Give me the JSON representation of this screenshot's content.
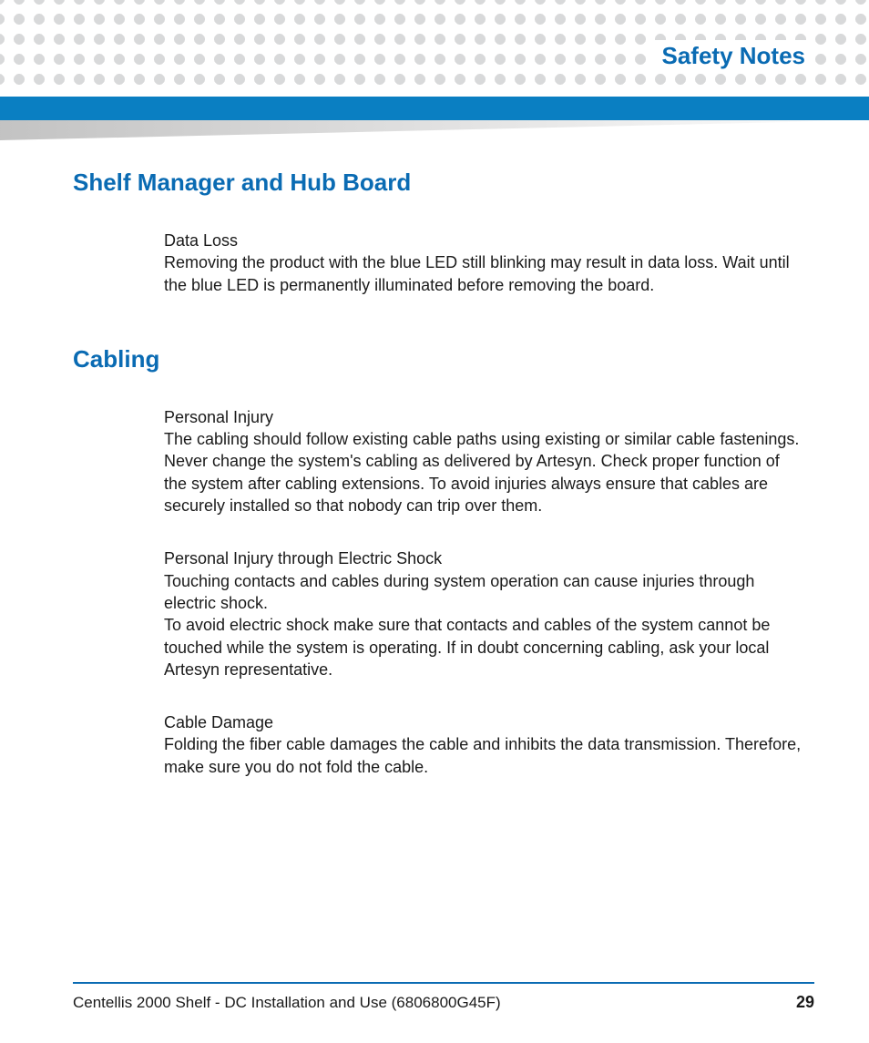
{
  "header": {
    "title": "Safety Notes",
    "title_color": "#0a6bb3",
    "bar_color": "#0a7fc2",
    "dot_color": "#d8d9da"
  },
  "sections": [
    {
      "heading": "Shelf Manager and Hub Board",
      "notes": [
        {
          "title": "Data Loss",
          "body": "Removing the product with the blue LED still blinking may result in data loss. Wait until the blue LED is permanently illuminated before removing the board."
        }
      ]
    },
    {
      "heading": "Cabling",
      "notes": [
        {
          "title": "Personal Injury",
          "body": "The cabling should follow existing cable paths using existing or similar cable fastenings. Never change the system's cabling as delivered by Artesyn. Check proper function of the system after cabling extensions. To avoid injuries always ensure that cables are securely installed so that nobody can trip over them."
        },
        {
          "title": "Personal Injury through Electric Shock",
          "body": "Touching contacts and cables during system operation can cause injuries through electric shock.\nTo avoid electric shock make sure that contacts and cables of the system cannot be touched while the system is operating. If in doubt concerning cabling, ask your local Artesyn representative."
        },
        {
          "title": "Cable Damage",
          "body": "Folding the fiber cable damages the cable and inhibits the data transmission. Therefore, make sure you do not fold the cable."
        }
      ]
    }
  ],
  "footer": {
    "doc_title": "Centellis 2000 Shelf - DC Installation and Use (6806800G45F)",
    "page_number": "29",
    "rule_color": "#0a6bb3"
  },
  "typography": {
    "heading_color": "#0a6bb3",
    "body_color": "#1a1a1a",
    "heading_fontsize": 26,
    "body_fontsize": 18
  }
}
